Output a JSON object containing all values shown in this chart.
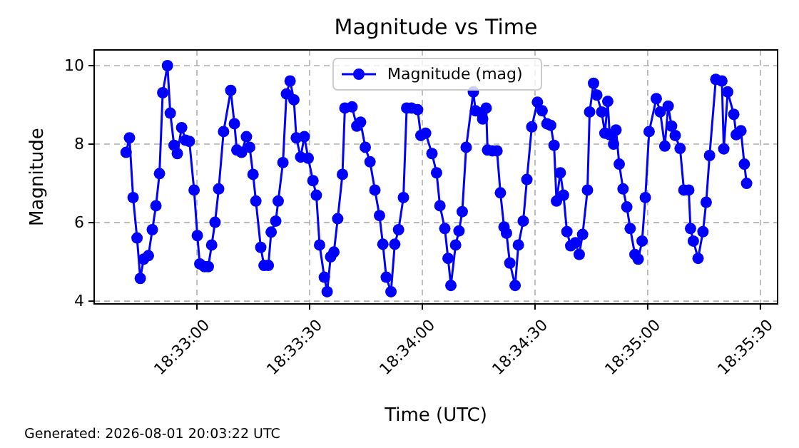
{
  "chart_data": {
    "type": "line",
    "title": "Magnitude vs Time",
    "xlabel": "Time (UTC)",
    "ylabel": "Magnitude",
    "annotations": [
      "Generated: 2026-08-01 20:03:22 UTC"
    ],
    "x": [
      18.54476,
      18.54501,
      18.54528,
      18.54557,
      18.54581,
      18.54606,
      18.54641,
      18.5467,
      18.54697,
      18.54723,
      18.54747,
      18.54782,
      18.54803,
      18.54831,
      18.54855,
      18.54887,
      18.54916,
      18.54944,
      18.54979,
      18.55003,
      18.55021,
      18.55056,
      18.55084,
      18.55109,
      18.55134,
      18.55161,
      18.55197,
      18.5525,
      18.55277,
      18.55295,
      18.5533,
      18.55366,
      18.5539,
      18.55415,
      18.55436,
      18.55472,
      18.55496,
      18.55528,
      18.55549,
      18.55583,
      18.55601,
      18.55636,
      18.55662,
      18.55689,
      18.55717,
      18.55735,
      18.55767,
      18.55794,
      18.55823,
      18.55858,
      18.55883,
      18.55907,
      18.55942,
      18.55963,
      18.55989,
      18.56013,
      18.56041,
      18.56076,
      18.56094,
      18.56147,
      18.56182,
      18.5621,
      18.56245,
      18.5628,
      18.56316,
      18.5635,
      18.56375,
      18.564,
      18.56435,
      18.56463,
      18.56491,
      18.56527,
      18.56551,
      18.56586,
      18.56632,
      18.56656,
      18.56691,
      18.56738,
      18.56772,
      18.56797,
      18.56833,
      18.56857,
      18.56878,
      18.56913,
      18.56938,
      18.56962,
      18.56991,
      18.57044,
      18.5706,
      18.57103,
      18.57113,
      18.57139,
      18.57149,
      18.57184,
      18.57219,
      18.57244,
      18.57271,
      18.57289,
      18.57314,
      18.57353,
      18.57377,
      18.57413,
      18.5744,
      18.57476,
      18.57518,
      18.57553,
      18.57588,
      18.57616,
      18.57641,
      18.57659,
      18.57687,
      18.57711,
      18.57736,
      18.57764,
      18.57799,
      18.57827,
      18.57852,
      18.57888,
      18.57904,
      18.57933,
      18.57957,
      18.57993,
      18.58017,
      18.58038,
      18.58052,
      18.58081,
      18.58099,
      18.58123,
      18.58151,
      18.58179,
      18.58204,
      18.58239,
      18.58263,
      18.58292,
      18.58316,
      18.58344,
      18.58397,
      18.58426,
      18.5846,
      18.58485,
      18.5851,
      18.58537,
      18.58573,
      18.58601,
      18.58637,
      18.5865,
      18.58671,
      18.58706,
      18.58742,
      18.58766,
      18.58791,
      18.58837,
      18.58882,
      18.58896,
      18.58925,
      18.5897,
      18.58988,
      18.59023,
      18.59048,
      18.59065
    ],
    "series": [
      {
        "name": "Magnitude (mag)",
        "color": "#0000ff",
        "values": [
          7.79,
          8.16,
          6.64,
          5.61,
          4.58,
          5.07,
          5.16,
          5.82,
          6.43,
          7.25,
          9.31,
          10.0,
          8.79,
          7.97,
          7.76,
          8.42,
          8.1,
          8.07,
          6.83,
          5.67,
          4.95,
          4.88,
          4.88,
          5.43,
          6.01,
          6.86,
          8.32,
          9.37,
          8.52,
          7.85,
          7.79,
          8.19,
          7.92,
          7.23,
          6.55,
          5.37,
          4.91,
          4.91,
          5.76,
          6.04,
          6.55,
          7.53,
          9.28,
          9.61,
          9.13,
          8.16,
          7.67,
          8.19,
          7.64,
          7.07,
          6.7,
          5.43,
          4.61,
          4.24,
          5.13,
          5.25,
          6.1,
          7.23,
          8.92,
          8.95,
          8.46,
          8.56,
          7.92,
          7.55,
          6.83,
          6.18,
          5.45,
          4.61,
          4.24,
          5.45,
          5.82,
          6.64,
          8.92,
          8.92,
          8.88,
          8.22,
          8.28,
          7.76,
          7.27,
          6.43,
          5.85,
          5.09,
          4.4,
          5.43,
          5.79,
          6.28,
          7.92,
          9.33,
          8.85,
          8.8,
          8.64,
          8.92,
          7.85,
          7.83,
          7.83,
          6.76,
          5.89,
          5.73,
          4.97,
          4.4,
          5.43,
          6.04,
          7.1,
          8.44,
          9.07,
          8.85,
          8.52,
          8.48,
          7.97,
          6.55,
          7.27,
          6.7,
          5.77,
          5.41,
          5.49,
          5.19,
          5.7,
          6.83,
          8.82,
          9.55,
          9.25,
          8.82,
          8.28,
          9.09,
          8.24,
          8.0,
          8.36,
          7.49,
          6.86,
          6.4,
          5.85,
          5.19,
          5.07,
          5.53,
          6.64,
          8.32,
          9.16,
          8.82,
          7.95,
          8.97,
          8.46,
          8.22,
          7.89,
          6.83,
          6.83,
          5.85,
          5.53,
          5.09,
          5.77,
          6.52,
          7.71,
          9.65,
          9.61,
          7.88,
          9.33,
          8.76,
          8.24,
          8.34,
          7.49,
          7.0
        ]
      }
    ],
    "xlim": [
      18.5424,
      18.59294
    ],
    "ylim": [
      3.93,
      10.4
    ],
    "xticks": [
      {
        "value": 18.55,
        "label": "18:33:00"
      },
      {
        "value": 18.558333,
        "label": "18:33:30"
      },
      {
        "value": 18.566667,
        "label": "18:34:00"
      },
      {
        "value": 18.575,
        "label": "18:34:30"
      },
      {
        "value": 18.583333,
        "label": "18:35:00"
      },
      {
        "value": 18.591667,
        "label": "18:35:30"
      }
    ],
    "yticks": [
      4,
      6,
      8,
      10
    ],
    "grid": true,
    "legend": "top",
    "marker": "circle",
    "line_style": "solid"
  }
}
